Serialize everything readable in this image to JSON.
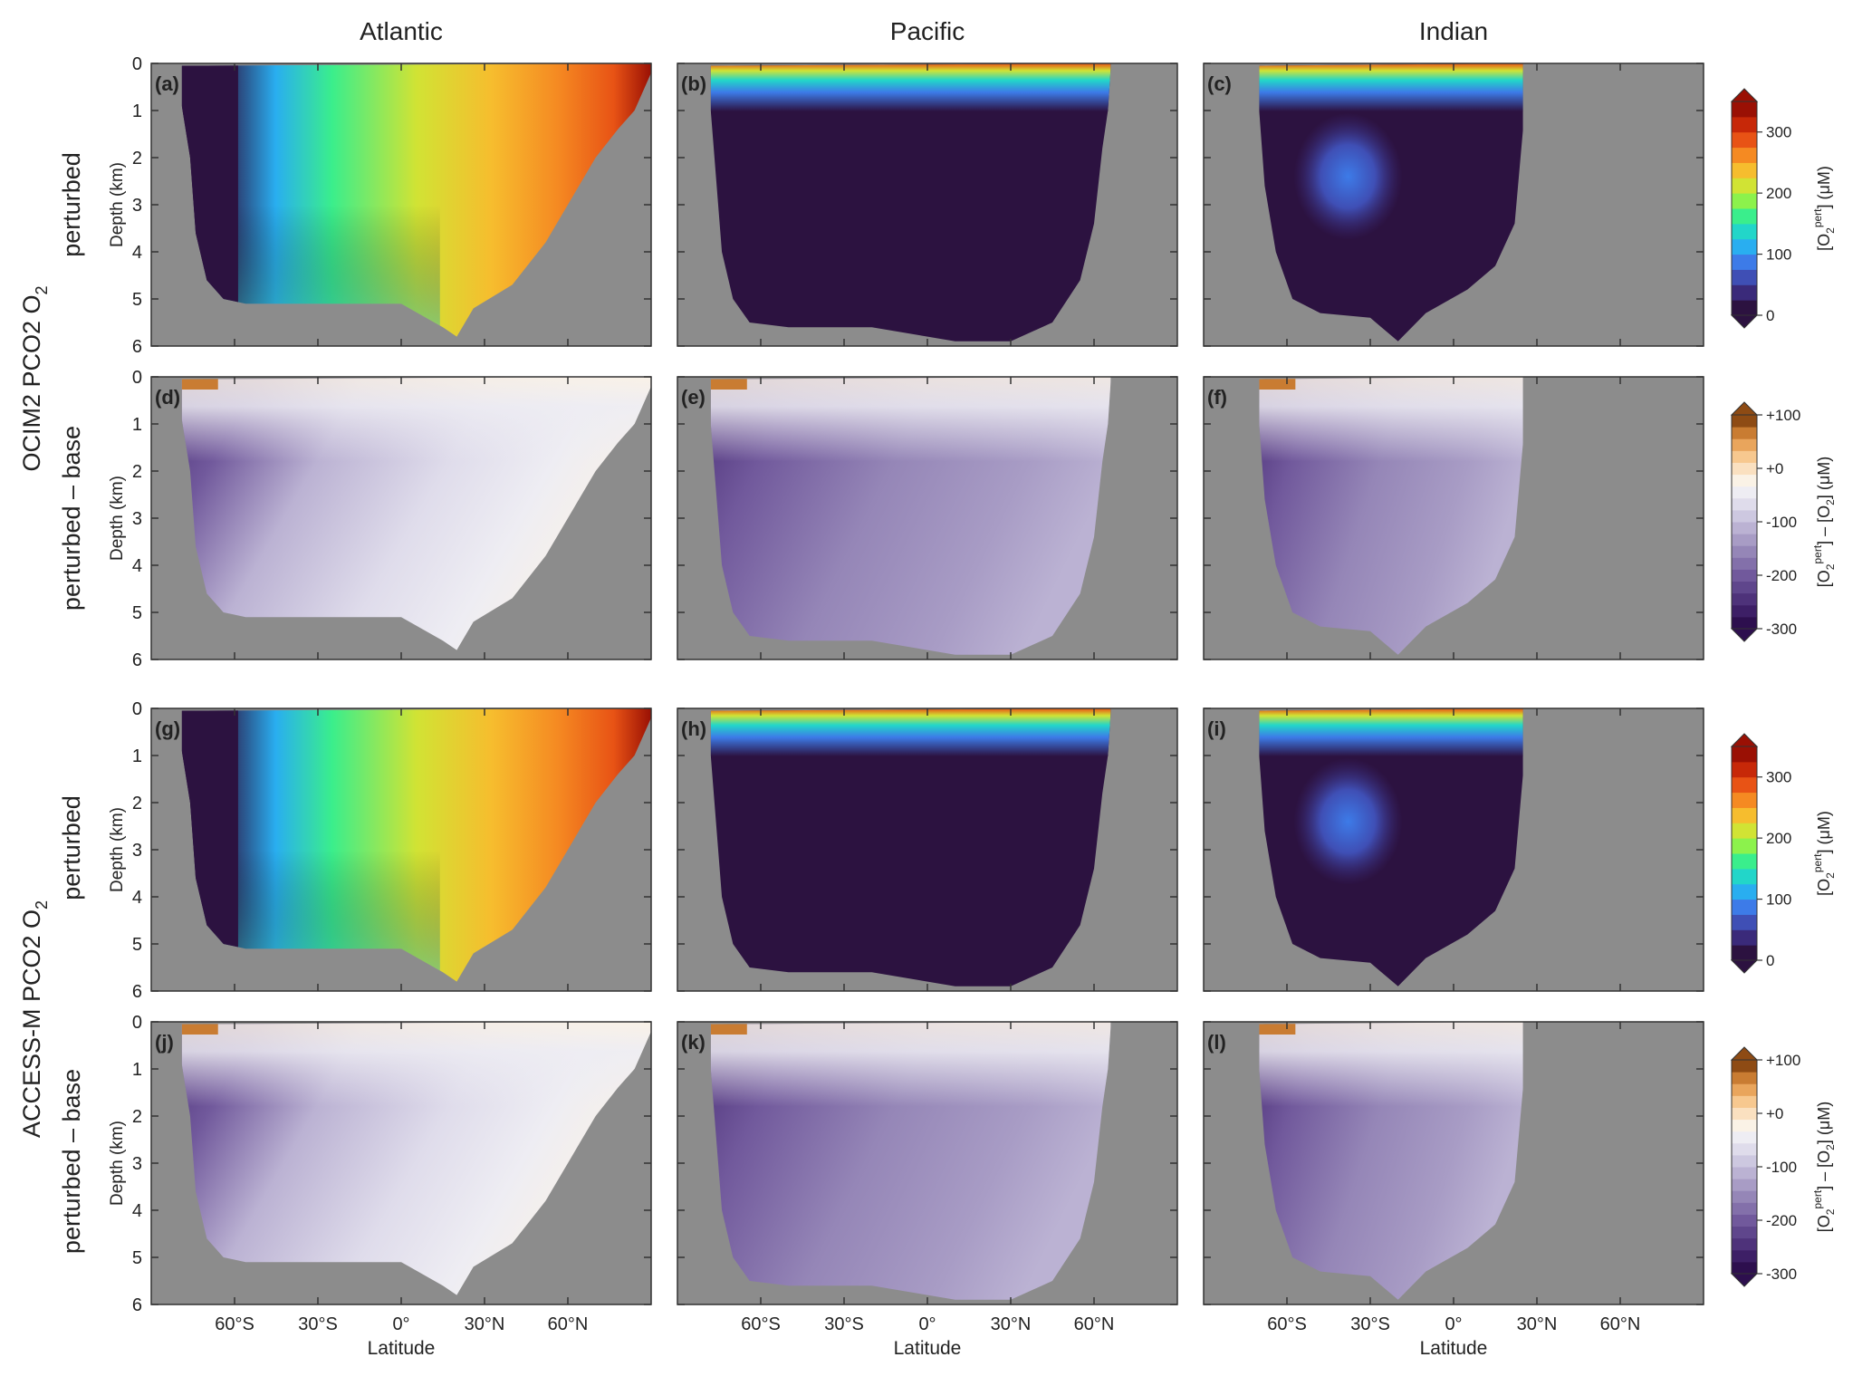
{
  "column_titles": [
    "Atlantic",
    "Pacific",
    "Indian"
  ],
  "row_group_labels": [
    {
      "model": "OCIM2 PCO2 O",
      "sub": "2",
      "rows": [
        "perturbed",
        "perturbed – base"
      ]
    },
    {
      "model": "ACCESS-M PCO2 O",
      "sub": "2",
      "rows": [
        "perturbed",
        "perturbed – base"
      ]
    }
  ],
  "panel_labels": [
    "(a)",
    "(b)",
    "(c)",
    "(d)",
    "(e)",
    "(f)",
    "(g)",
    "(h)",
    "(i)",
    "(j)",
    "(k)",
    "(l)"
  ],
  "axes": {
    "ylabel": "Depth (km)",
    "xlabel": "Latitude",
    "yticks": [
      "0",
      "1",
      "2",
      "3",
      "4",
      "5",
      "6"
    ],
    "xticks": [
      "60°S",
      "30°S",
      "0°",
      "30°N",
      "60°N"
    ]
  },
  "colorbars": [
    {
      "type": "perturbed",
      "ticks": [
        "0",
        "100",
        "200",
        "300"
      ],
      "label_main": "[O",
      "label_sub": "2",
      "label_sup": "pert",
      "label_rest": "] (μM)",
      "colors": [
        "#2c1240",
        "#3a2a7a",
        "#3f4fb5",
        "#3d7be8",
        "#29aef0",
        "#22d6c9",
        "#3aee8c",
        "#8cf24c",
        "#d1e334",
        "#f6bd2e",
        "#f58a22",
        "#e85315",
        "#c72808",
        "#9a1004"
      ]
    },
    {
      "type": "diff",
      "ticks": [
        "+100",
        "+0",
        "-100",
        "-200",
        "-300"
      ],
      "label_main": "[O",
      "label_sub": "2",
      "label_sup": "pert",
      "label_rest": "] – [O",
      "label_sub2": "2",
      "label_end": "] (μM)",
      "colors": [
        "#2d0f4e",
        "#3d1f66",
        "#4e327a",
        "#5f468c",
        "#71599c",
        "#8370aa",
        "#9586b7",
        "#a89cc5",
        "#bbb2d3",
        "#cdc8e0",
        "#dfdceb",
        "#eeedf3",
        "#faf2e6",
        "#fae0c0",
        "#f7c88f",
        "#e9a55c",
        "#c97c32",
        "#8e4b14"
      ]
    }
  ],
  "chart_data": {
    "type": "heatmap",
    "description_variable": "O2 concentration sections vs latitude and depth",
    "x_range": [
      -90,
      90
    ],
    "y_range_km": [
      0,
      6
    ],
    "colorbar_ranges": {
      "perturbed": [
        0,
        350
      ],
      "diff": [
        -300,
        100
      ]
    },
    "basins": {
      "Atlantic": {
        "lat_min": -79,
        "lat_max": 90,
        "max_depth_km": 5.8
      },
      "Pacific": {
        "lat_min": -78,
        "lat_max": 66,
        "max_depth_km": 6.0
      },
      "Indian": {
        "lat_min": -70,
        "lat_max": 25,
        "max_depth_km": 5.9
      }
    }
  },
  "colors": {
    "land": "#8c8c8c",
    "frame": "#333333"
  }
}
